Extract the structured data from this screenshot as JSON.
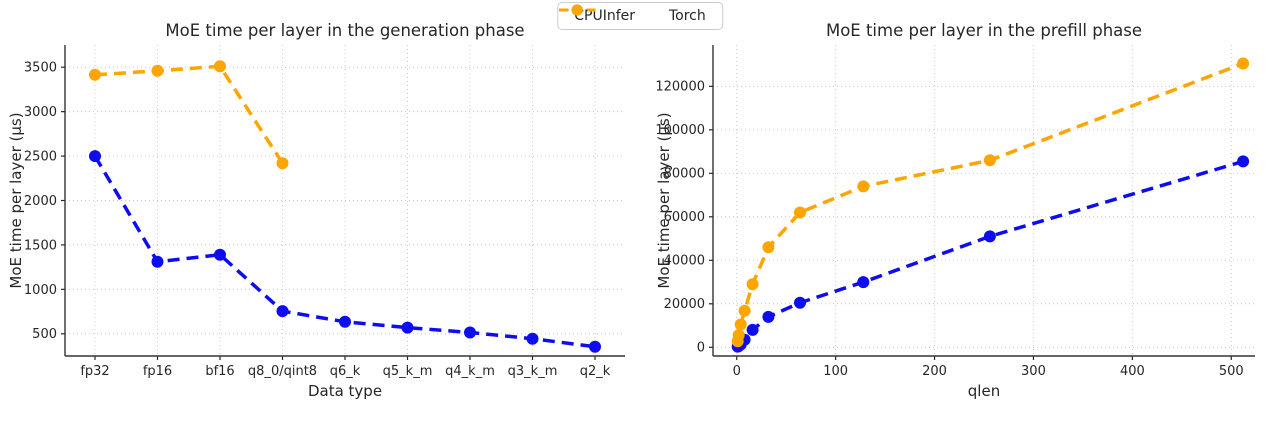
{
  "figure": {
    "background": "#ffffff",
    "text_color": "#262626",
    "grid_color": "#cccccc"
  },
  "legend": {
    "position": "top-center",
    "items": [
      {
        "label": "CPUInfer",
        "color": "#0d0df0"
      },
      {
        "label": "Torch",
        "color": "#ffa500"
      }
    ]
  },
  "chart_data": [
    {
      "type": "line",
      "title": "MoE time per layer in the generation phase",
      "xlabel": "Data type",
      "ylabel": "MoE time per layer (μs)",
      "x_type": "category",
      "categories": [
        "fp32",
        "fp16",
        "bf16",
        "q8_0/qint8",
        "q6_k",
        "q5_k_m",
        "q4_k_m",
        "q3_k_m",
        "q2_k"
      ],
      "yticks": [
        500,
        1000,
        1500,
        2000,
        2500,
        3000,
        3500
      ],
      "ylim": [
        250,
        3750
      ],
      "grid": true,
      "linestyle": "dashed",
      "series": [
        {
          "name": "CPUInfer",
          "color": "#0d0df0",
          "values": [
            2500,
            1310,
            1390,
            755,
            635,
            570,
            515,
            445,
            355
          ]
        },
        {
          "name": "Torch",
          "color": "#ffa500",
          "values": [
            3415,
            3460,
            3510,
            2420,
            null,
            null,
            null,
            null,
            null
          ]
        }
      ]
    },
    {
      "type": "line",
      "title": "MoE time per layer in the prefill phase",
      "xlabel": "qlen",
      "ylabel": "MoE time per layer (μs)",
      "x_type": "linear",
      "x": [
        1,
        2,
        4,
        8,
        16,
        32,
        64,
        128,
        256,
        512
      ],
      "xticks": [
        0,
        100,
        200,
        300,
        400,
        500
      ],
      "xlim": [
        -24,
        524
      ],
      "yticks": [
        0,
        20000,
        40000,
        60000,
        80000,
        100000,
        120000
      ],
      "ylim": [
        -4000,
        139000
      ],
      "grid": true,
      "linestyle": "dashed",
      "series": [
        {
          "name": "CPUInfer",
          "color": "#0d0df0",
          "values": [
            300,
            600,
            1300,
            3500,
            8000,
            14000,
            20500,
            30000,
            51000,
            85500
          ]
        },
        {
          "name": "Torch",
          "color": "#ffa500",
          "values": [
            2800,
            5500,
            10500,
            16800,
            29000,
            46000,
            62000,
            74000,
            86000,
            130500
          ]
        }
      ]
    }
  ]
}
